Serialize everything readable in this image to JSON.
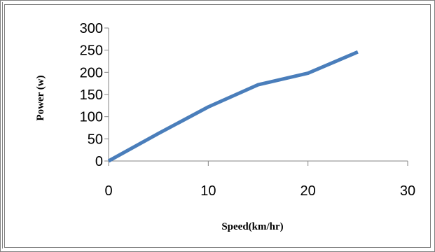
{
  "chart_data": {
    "type": "line",
    "title": "",
    "xlabel": "Speed(km/hr)",
    "ylabel": "Power (w)",
    "xlim": [
      0,
      30
    ],
    "ylim": [
      0,
      300
    ],
    "xticks": [
      "0",
      "10",
      "20",
      "30"
    ],
    "yticks": [
      "0",
      "50",
      "100",
      "150",
      "200",
      "250",
      "300"
    ],
    "grid": false,
    "legend": "none",
    "series": [
      {
        "color": "#4a7ebb",
        "x": [
          0,
          5,
          10,
          15,
          20,
          25
        ],
        "y": [
          0,
          62,
          122,
          172,
          198,
          246
        ]
      }
    ]
  }
}
